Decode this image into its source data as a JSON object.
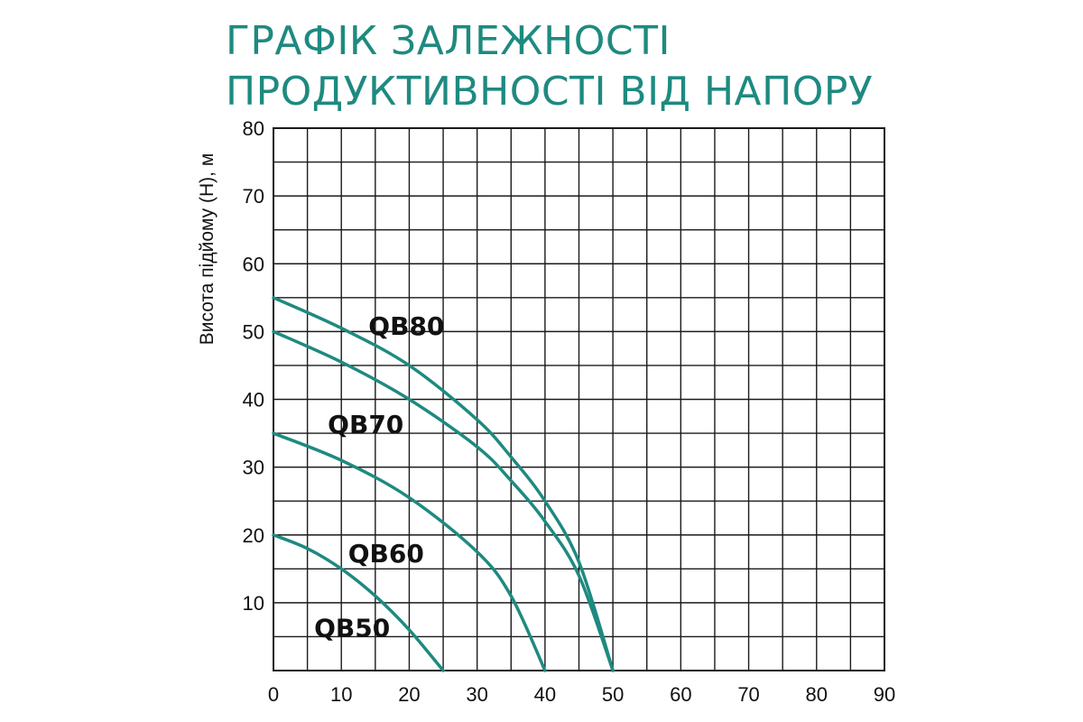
{
  "title_lines": [
    "ГРАФІК ЗАЛЕЖНОСТІ",
    "ПРОДУКТИВНОСТІ ВІД НАПОРУ"
  ],
  "colors": {
    "title": "#1e8a80",
    "curve": "#1e8a80",
    "grid": "#1a1a1a"
  },
  "chart_data": {
    "type": "line",
    "title": "ГРАФІК ЗАЛЕЖНОСТІ ПРОДУКТИВНОСТІ ВІД НАПОРУ",
    "xlabel": "",
    "ylabel": "Висота підйому (Н), м",
    "xlim": [
      0,
      90
    ],
    "ylim": [
      0,
      80
    ],
    "x_ticks": [
      "0",
      "10",
      "20",
      "30",
      "40",
      "50",
      "60",
      "70",
      "80",
      "90"
    ],
    "y_ticks": [
      "10",
      "20",
      "30",
      "40",
      "50",
      "60",
      "70",
      "80"
    ],
    "grid": true,
    "series": [
      {
        "name": "QB80",
        "x": [
          0,
          10,
          20,
          30,
          35,
          40,
          45,
          50
        ],
        "y": [
          55,
          50.5,
          45,
          37,
          31.5,
          25,
          16,
          0
        ]
      },
      {
        "name": "QB70",
        "x": [
          0,
          10,
          20,
          30,
          35,
          40,
          45,
          50
        ],
        "y": [
          50,
          45.5,
          40,
          33,
          28,
          22,
          14,
          0
        ]
      },
      {
        "name": "QB60",
        "x": [
          0,
          10,
          20,
          30,
          35,
          40
        ],
        "y": [
          35,
          31,
          25.5,
          17.5,
          11,
          0
        ]
      },
      {
        "name": "QB50",
        "x": [
          0,
          5,
          10,
          15,
          20,
          25
        ],
        "y": [
          20,
          18,
          15,
          11,
          6,
          0
        ]
      }
    ]
  }
}
